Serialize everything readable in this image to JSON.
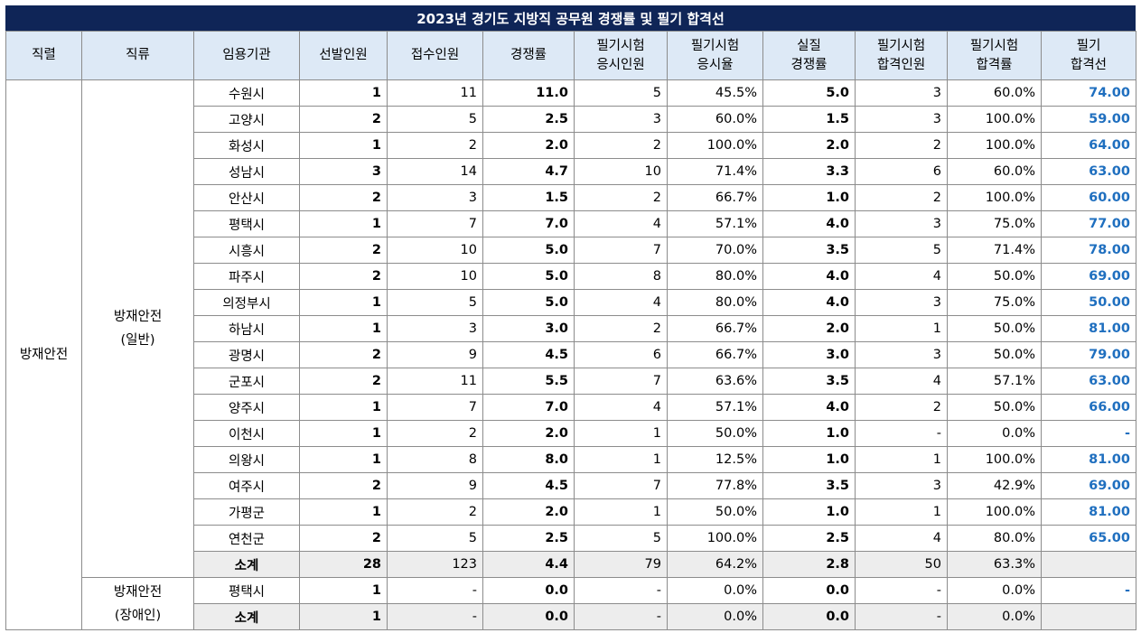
{
  "title": "2023년 경기도 지방직 공무원 경쟁률 및 필기 합격선",
  "headers": {
    "jikryeol": "직렬",
    "jikryu": "직류",
    "agency": "임용기관",
    "selected": "선발인원",
    "applicants": "접수인원",
    "ratio": "경쟁률",
    "exam_takers_l1": "필기시험",
    "exam_takers_l2": "응시인원",
    "exam_rate_l1": "필기시험",
    "exam_rate_l2": "응시율",
    "real_ratio_l1": "실질",
    "real_ratio_l2": "경쟁률",
    "passers_l1": "필기시험",
    "passers_l2": "합격인원",
    "pass_rate_l1": "필기시험",
    "pass_rate_l2": "합격률",
    "cutoff_l1": "필기",
    "cutoff_l2": "합격선"
  },
  "jikryeol_label": "방재안전",
  "groups": [
    {
      "jikryu_line1": "방재안전",
      "jikryu_line2": "(일반)",
      "rows": [
        {
          "agency": "수원시",
          "selected": "1",
          "applicants": "11",
          "ratio": "11.0",
          "takers": "5",
          "exam_rate": "45.5%",
          "real_ratio": "5.0",
          "passers": "3",
          "pass_rate": "60.0%",
          "cutoff": "74.00"
        },
        {
          "agency": "고양시",
          "selected": "2",
          "applicants": "5",
          "ratio": "2.5",
          "takers": "3",
          "exam_rate": "60.0%",
          "real_ratio": "1.5",
          "passers": "3",
          "pass_rate": "100.0%",
          "cutoff": "59.00"
        },
        {
          "agency": "화성시",
          "selected": "1",
          "applicants": "2",
          "ratio": "2.0",
          "takers": "2",
          "exam_rate": "100.0%",
          "real_ratio": "2.0",
          "passers": "2",
          "pass_rate": "100.0%",
          "cutoff": "64.00"
        },
        {
          "agency": "성남시",
          "selected": "3",
          "applicants": "14",
          "ratio": "4.7",
          "takers": "10",
          "exam_rate": "71.4%",
          "real_ratio": "3.3",
          "passers": "6",
          "pass_rate": "60.0%",
          "cutoff": "63.00"
        },
        {
          "agency": "안산시",
          "selected": "2",
          "applicants": "3",
          "ratio": "1.5",
          "takers": "2",
          "exam_rate": "66.7%",
          "real_ratio": "1.0",
          "passers": "2",
          "pass_rate": "100.0%",
          "cutoff": "60.00"
        },
        {
          "agency": "평택시",
          "selected": "1",
          "applicants": "7",
          "ratio": "7.0",
          "takers": "4",
          "exam_rate": "57.1%",
          "real_ratio": "4.0",
          "passers": "3",
          "pass_rate": "75.0%",
          "cutoff": "77.00"
        },
        {
          "agency": "시흥시",
          "selected": "2",
          "applicants": "10",
          "ratio": "5.0",
          "takers": "7",
          "exam_rate": "70.0%",
          "real_ratio": "3.5",
          "passers": "5",
          "pass_rate": "71.4%",
          "cutoff": "78.00"
        },
        {
          "agency": "파주시",
          "selected": "2",
          "applicants": "10",
          "ratio": "5.0",
          "takers": "8",
          "exam_rate": "80.0%",
          "real_ratio": "4.0",
          "passers": "4",
          "pass_rate": "50.0%",
          "cutoff": "69.00"
        },
        {
          "agency": "의정부시",
          "selected": "1",
          "applicants": "5",
          "ratio": "5.0",
          "takers": "4",
          "exam_rate": "80.0%",
          "real_ratio": "4.0",
          "passers": "3",
          "pass_rate": "75.0%",
          "cutoff": "50.00"
        },
        {
          "agency": "하남시",
          "selected": "1",
          "applicants": "3",
          "ratio": "3.0",
          "takers": "2",
          "exam_rate": "66.7%",
          "real_ratio": "2.0",
          "passers": "1",
          "pass_rate": "50.0%",
          "cutoff": "81.00"
        },
        {
          "agency": "광명시",
          "selected": "2",
          "applicants": "9",
          "ratio": "4.5",
          "takers": "6",
          "exam_rate": "66.7%",
          "real_ratio": "3.0",
          "passers": "3",
          "pass_rate": "50.0%",
          "cutoff": "79.00"
        },
        {
          "agency": "군포시",
          "selected": "2",
          "applicants": "11",
          "ratio": "5.5",
          "takers": "7",
          "exam_rate": "63.6%",
          "real_ratio": "3.5",
          "passers": "4",
          "pass_rate": "57.1%",
          "cutoff": "63.00"
        },
        {
          "agency": "양주시",
          "selected": "1",
          "applicants": "7",
          "ratio": "7.0",
          "takers": "4",
          "exam_rate": "57.1%",
          "real_ratio": "4.0",
          "passers": "2",
          "pass_rate": "50.0%",
          "cutoff": "66.00"
        },
        {
          "agency": "이천시",
          "selected": "1",
          "applicants": "2",
          "ratio": "2.0",
          "takers": "1",
          "exam_rate": "50.0%",
          "real_ratio": "1.0",
          "passers": "-",
          "pass_rate": "0.0%",
          "cutoff": "-"
        },
        {
          "agency": "의왕시",
          "selected": "1",
          "applicants": "8",
          "ratio": "8.0",
          "takers": "1",
          "exam_rate": "12.5%",
          "real_ratio": "1.0",
          "passers": "1",
          "pass_rate": "100.0%",
          "cutoff": "81.00"
        },
        {
          "agency": "여주시",
          "selected": "2",
          "applicants": "9",
          "ratio": "4.5",
          "takers": "7",
          "exam_rate": "77.8%",
          "real_ratio": "3.5",
          "passers": "3",
          "pass_rate": "42.9%",
          "cutoff": "69.00"
        },
        {
          "agency": "가평군",
          "selected": "1",
          "applicants": "2",
          "ratio": "2.0",
          "takers": "1",
          "exam_rate": "50.0%",
          "real_ratio": "1.0",
          "passers": "1",
          "pass_rate": "100.0%",
          "cutoff": "81.00"
        },
        {
          "agency": "연천군",
          "selected": "2",
          "applicants": "5",
          "ratio": "2.5",
          "takers": "5",
          "exam_rate": "100.0%",
          "real_ratio": "2.5",
          "passers": "4",
          "pass_rate": "80.0%",
          "cutoff": "65.00"
        }
      ],
      "subtotal": {
        "agency": "소계",
        "selected": "28",
        "applicants": "123",
        "ratio": "4.4",
        "takers": "79",
        "exam_rate": "64.2%",
        "real_ratio": "2.8",
        "passers": "50",
        "pass_rate": "63.3%",
        "cutoff": ""
      }
    },
    {
      "jikryu_line1": "방재안전",
      "jikryu_line2": "(장애인)",
      "rows": [
        {
          "agency": "평택시",
          "selected": "1",
          "applicants": "-",
          "ratio": "0.0",
          "takers": "-",
          "exam_rate": "0.0%",
          "real_ratio": "0.0",
          "passers": "-",
          "pass_rate": "0.0%",
          "cutoff": "-"
        }
      ],
      "subtotal": {
        "agency": "소계",
        "selected": "1",
        "applicants": "-",
        "ratio": "0.0",
        "takers": "-",
        "exam_rate": "0.0%",
        "real_ratio": "0.0",
        "passers": "-",
        "pass_rate": "0.0%",
        "cutoff": ""
      }
    }
  ],
  "colors": {
    "title_bg": "#0f2557",
    "header_bg": "#dde9f6",
    "subtotal_bg": "#ededed",
    "cutoff_text": "#1f6fbf"
  }
}
